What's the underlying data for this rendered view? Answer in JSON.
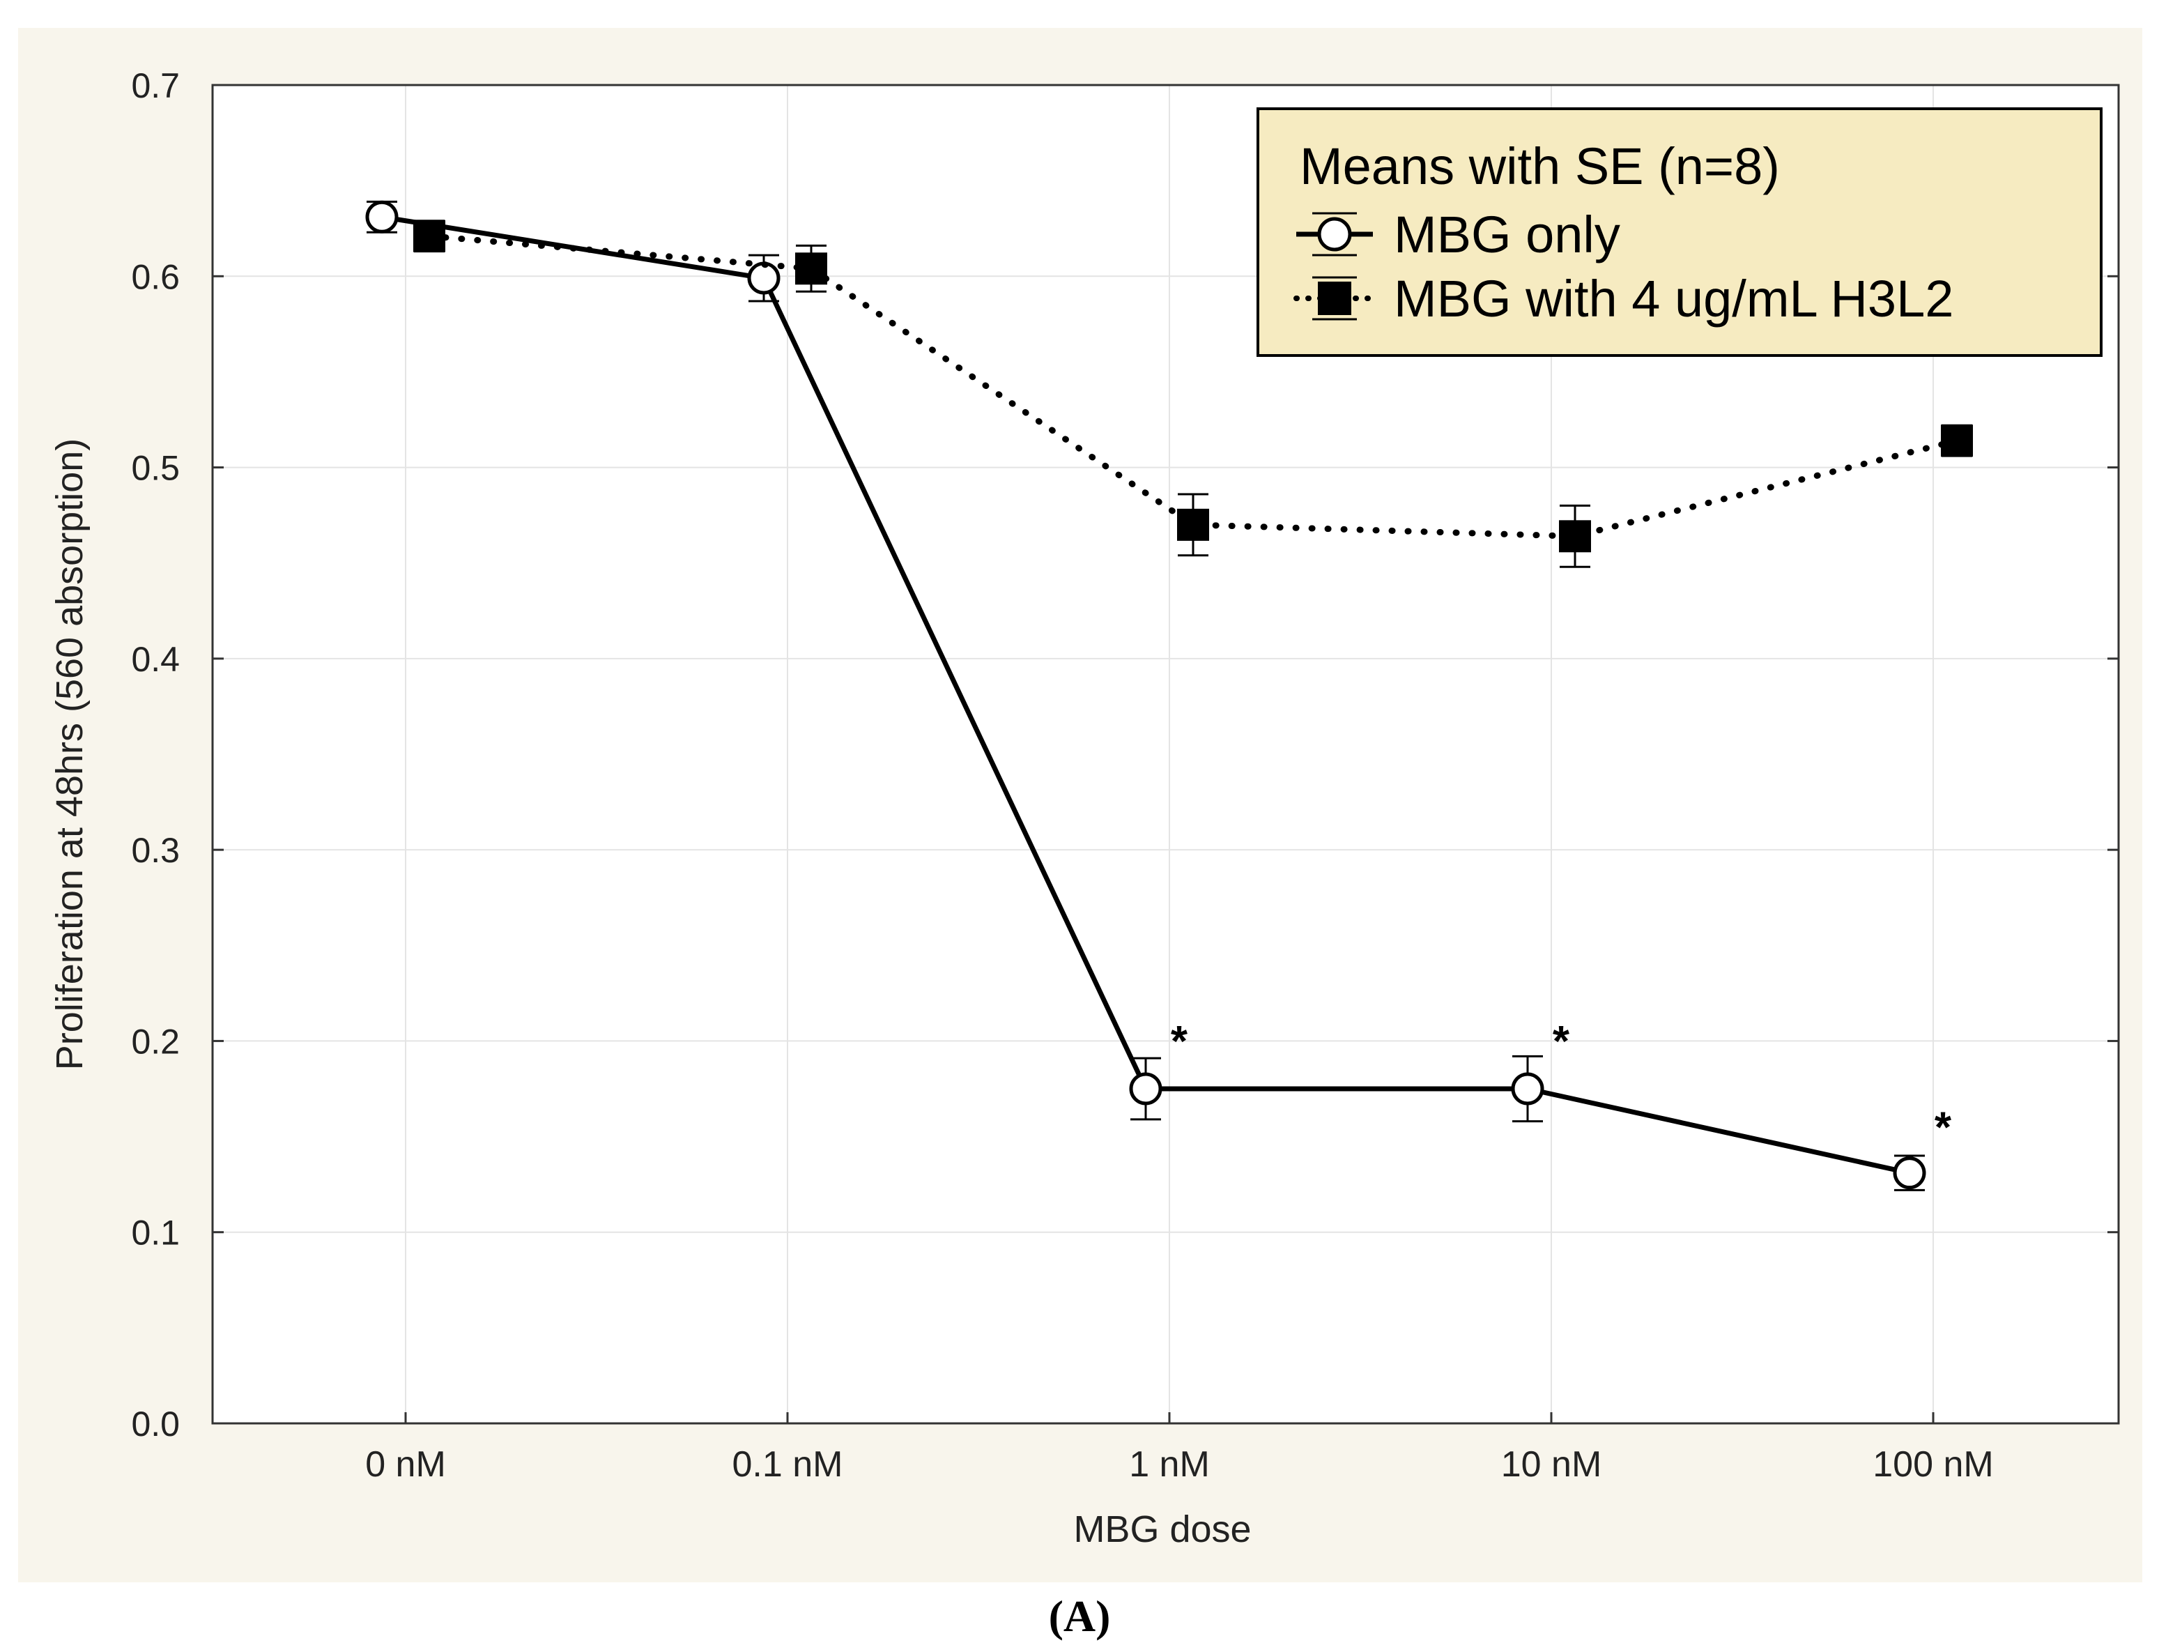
{
  "chart_data": {
    "type": "line",
    "xlabel": "MBG dose",
    "ylabel": "Proliferation at 48hrs (560 absorption)",
    "categories": [
      "0 nM",
      "0.1 nM",
      "1 nM",
      "10 nM",
      "100 nM"
    ],
    "ylim": [
      0.0,
      0.7
    ],
    "yticks": [
      0.0,
      0.1,
      0.2,
      0.3,
      0.4,
      0.5,
      0.6,
      0.7
    ],
    "ytick_labels": [
      "0.0",
      "0.1",
      "0.2",
      "0.3",
      "0.4",
      "0.5",
      "0.6",
      "0.7"
    ],
    "grid": true,
    "legend": {
      "title": "Means with SE (n=8)",
      "position": "top-right",
      "background": "#f6ebc1"
    },
    "series": [
      {
        "name": "MBG only",
        "style": "solid",
        "marker": "open-circle",
        "values": [
          0.631,
          0.599,
          0.175,
          0.175,
          0.131
        ],
        "se": [
          0.008,
          0.012,
          0.016,
          0.017,
          0.009
        ]
      },
      {
        "name": "MBG with 4 ug/mL H3L2",
        "style": "dotted",
        "marker": "filled-square",
        "values": [
          0.621,
          0.604,
          0.47,
          0.464,
          0.514
        ],
        "se": [
          0.008,
          0.012,
          0.016,
          0.016,
          0.008
        ]
      }
    ],
    "annotations": [
      {
        "category": "1 nM",
        "text": "*",
        "value": 0.203
      },
      {
        "category": "10 nM",
        "text": "*",
        "value": 0.203
      },
      {
        "category": "100 nM",
        "text": "*",
        "value": 0.158
      }
    ]
  },
  "panel_label": "(A)",
  "colors": {
    "plot_background": "#f8f5ec",
    "legend_background": "#f6ebc1",
    "line": "#000000",
    "grid": "#e6e6e6"
  }
}
